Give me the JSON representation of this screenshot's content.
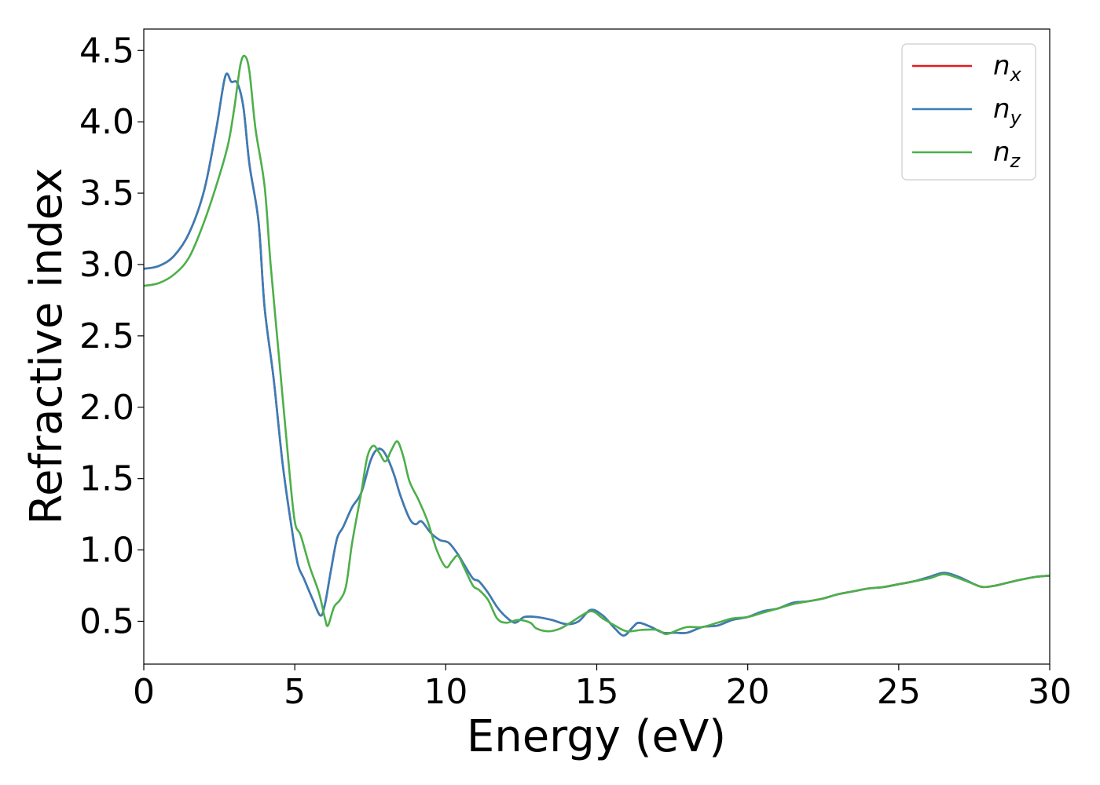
{
  "chart_data": {
    "type": "line",
    "title": "",
    "xlabel": "Energy (eV)",
    "ylabel": "Refractive index",
    "xlim": [
      0,
      30
    ],
    "ylim": [
      0.2,
      4.65
    ],
    "xticks": [
      0,
      5,
      10,
      15,
      20,
      25,
      30
    ],
    "xtick_labels": [
      "0",
      "5",
      "10",
      "15",
      "20",
      "25",
      "30"
    ],
    "yticks": [
      0.5,
      1.0,
      1.5,
      2.0,
      2.5,
      3.0,
      3.5,
      4.0,
      4.5
    ],
    "ytick_labels": [
      "0.5",
      "1.0",
      "1.5",
      "2.0",
      "2.5",
      "3.0",
      "3.5",
      "4.0",
      "4.5"
    ],
    "grid": false,
    "legend_position": "top-right",
    "legend": [
      {
        "base": "n",
        "sub": "x",
        "color": "#e41a1c"
      },
      {
        "base": "n",
        "sub": "y",
        "color": "#377eb8"
      },
      {
        "base": "n",
        "sub": "z",
        "color": "#4daf4a"
      }
    ],
    "series": [
      {
        "color": "#e41a1c",
        "points": [
          [
            0,
            2.97
          ],
          [
            0.5,
            2.99
          ],
          [
            1.0,
            3.06
          ],
          [
            1.5,
            3.22
          ],
          [
            2.0,
            3.52
          ],
          [
            2.4,
            3.95
          ],
          [
            2.7,
            4.32
          ],
          [
            2.9,
            4.28
          ],
          [
            3.1,
            4.27
          ],
          [
            3.3,
            4.1
          ],
          [
            3.5,
            3.7
          ],
          [
            3.8,
            3.3
          ],
          [
            4.0,
            2.7
          ],
          [
            4.3,
            2.2
          ],
          [
            4.6,
            1.6
          ],
          [
            4.9,
            1.15
          ],
          [
            5.1,
            0.9
          ],
          [
            5.3,
            0.8
          ],
          [
            5.6,
            0.65
          ],
          [
            5.85,
            0.54
          ],
          [
            6.0,
            0.62
          ],
          [
            6.2,
            0.86
          ],
          [
            6.4,
            1.08
          ],
          [
            6.6,
            1.16
          ],
          [
            6.9,
            1.3
          ],
          [
            7.2,
            1.4
          ],
          [
            7.5,
            1.62
          ],
          [
            7.7,
            1.7
          ],
          [
            7.9,
            1.7
          ],
          [
            8.1,
            1.63
          ],
          [
            8.3,
            1.52
          ],
          [
            8.5,
            1.38
          ],
          [
            8.8,
            1.22
          ],
          [
            9.0,
            1.18
          ],
          [
            9.2,
            1.2
          ],
          [
            9.5,
            1.12
          ],
          [
            9.8,
            1.07
          ],
          [
            10.1,
            1.05
          ],
          [
            10.4,
            0.97
          ],
          [
            10.6,
            0.9
          ],
          [
            10.9,
            0.8
          ],
          [
            11.1,
            0.78
          ],
          [
            11.4,
            0.7
          ],
          [
            11.7,
            0.6
          ],
          [
            12.0,
            0.53
          ],
          [
            12.3,
            0.49
          ],
          [
            12.6,
            0.53
          ],
          [
            13.0,
            0.53
          ],
          [
            13.5,
            0.51
          ],
          [
            14.0,
            0.48
          ],
          [
            14.4,
            0.5
          ],
          [
            14.8,
            0.58
          ],
          [
            15.2,
            0.54
          ],
          [
            15.6,
            0.45
          ],
          [
            15.9,
            0.4
          ],
          [
            16.2,
            0.46
          ],
          [
            16.4,
            0.49
          ],
          [
            16.8,
            0.46
          ],
          [
            17.2,
            0.42
          ],
          [
            17.6,
            0.42
          ],
          [
            18.0,
            0.42
          ],
          [
            18.5,
            0.46
          ],
          [
            19.0,
            0.47
          ],
          [
            19.5,
            0.51
          ],
          [
            20.0,
            0.53
          ],
          [
            20.5,
            0.57
          ],
          [
            21.0,
            0.59
          ],
          [
            21.5,
            0.63
          ],
          [
            22.0,
            0.64
          ],
          [
            22.5,
            0.66
          ],
          [
            23.0,
            0.69
          ],
          [
            23.5,
            0.71
          ],
          [
            24.0,
            0.73
          ],
          [
            24.5,
            0.74
          ],
          [
            25.0,
            0.76
          ],
          [
            25.5,
            0.78
          ],
          [
            26.0,
            0.81
          ],
          [
            26.5,
            0.84
          ],
          [
            27.0,
            0.81
          ],
          [
            27.5,
            0.76
          ],
          [
            27.8,
            0.74
          ],
          [
            28.2,
            0.75
          ],
          [
            28.6,
            0.77
          ],
          [
            29.0,
            0.79
          ],
          [
            29.5,
            0.81
          ],
          [
            30.0,
            0.82
          ]
        ]
      },
      {
        "color": "#377eb8",
        "points": [
          [
            0,
            2.97
          ],
          [
            0.5,
            2.99
          ],
          [
            1.0,
            3.06
          ],
          [
            1.5,
            3.22
          ],
          [
            2.0,
            3.52
          ],
          [
            2.4,
            3.95
          ],
          [
            2.7,
            4.32
          ],
          [
            2.9,
            4.28
          ],
          [
            3.1,
            4.27
          ],
          [
            3.3,
            4.1
          ],
          [
            3.5,
            3.7
          ],
          [
            3.8,
            3.3
          ],
          [
            4.0,
            2.7
          ],
          [
            4.3,
            2.2
          ],
          [
            4.6,
            1.6
          ],
          [
            4.9,
            1.15
          ],
          [
            5.1,
            0.9
          ],
          [
            5.3,
            0.8
          ],
          [
            5.6,
            0.65
          ],
          [
            5.85,
            0.54
          ],
          [
            6.0,
            0.62
          ],
          [
            6.2,
            0.86
          ],
          [
            6.4,
            1.08
          ],
          [
            6.6,
            1.16
          ],
          [
            6.9,
            1.3
          ],
          [
            7.2,
            1.4
          ],
          [
            7.5,
            1.62
          ],
          [
            7.7,
            1.7
          ],
          [
            7.9,
            1.7
          ],
          [
            8.1,
            1.63
          ],
          [
            8.3,
            1.52
          ],
          [
            8.5,
            1.38
          ],
          [
            8.8,
            1.22
          ],
          [
            9.0,
            1.18
          ],
          [
            9.2,
            1.2
          ],
          [
            9.5,
            1.12
          ],
          [
            9.8,
            1.07
          ],
          [
            10.1,
            1.05
          ],
          [
            10.4,
            0.97
          ],
          [
            10.6,
            0.9
          ],
          [
            10.9,
            0.8
          ],
          [
            11.1,
            0.78
          ],
          [
            11.4,
            0.7
          ],
          [
            11.7,
            0.6
          ],
          [
            12.0,
            0.53
          ],
          [
            12.3,
            0.49
          ],
          [
            12.6,
            0.53
          ],
          [
            13.0,
            0.53
          ],
          [
            13.5,
            0.51
          ],
          [
            14.0,
            0.48
          ],
          [
            14.4,
            0.5
          ],
          [
            14.8,
            0.58
          ],
          [
            15.2,
            0.54
          ],
          [
            15.6,
            0.45
          ],
          [
            15.9,
            0.4
          ],
          [
            16.2,
            0.46
          ],
          [
            16.4,
            0.49
          ],
          [
            16.8,
            0.46
          ],
          [
            17.2,
            0.42
          ],
          [
            17.6,
            0.42
          ],
          [
            18.0,
            0.42
          ],
          [
            18.5,
            0.46
          ],
          [
            19.0,
            0.47
          ],
          [
            19.5,
            0.51
          ],
          [
            20.0,
            0.53
          ],
          [
            20.5,
            0.57
          ],
          [
            21.0,
            0.59
          ],
          [
            21.5,
            0.63
          ],
          [
            22.0,
            0.64
          ],
          [
            22.5,
            0.66
          ],
          [
            23.0,
            0.69
          ],
          [
            23.5,
            0.71
          ],
          [
            24.0,
            0.73
          ],
          [
            24.5,
            0.74
          ],
          [
            25.0,
            0.76
          ],
          [
            25.5,
            0.78
          ],
          [
            26.0,
            0.81
          ],
          [
            26.5,
            0.84
          ],
          [
            27.0,
            0.81
          ],
          [
            27.5,
            0.76
          ],
          [
            27.8,
            0.74
          ],
          [
            28.2,
            0.75
          ],
          [
            28.6,
            0.77
          ],
          [
            29.0,
            0.79
          ],
          [
            29.5,
            0.81
          ],
          [
            30.0,
            0.82
          ]
        ]
      },
      {
        "color": "#4daf4a",
        "points": [
          [
            0,
            2.85
          ],
          [
            0.5,
            2.87
          ],
          [
            1.0,
            2.93
          ],
          [
            1.5,
            3.05
          ],
          [
            2.0,
            3.3
          ],
          [
            2.5,
            3.62
          ],
          [
            2.8,
            3.85
          ],
          [
            3.0,
            4.1
          ],
          [
            3.2,
            4.4
          ],
          [
            3.35,
            4.46
          ],
          [
            3.5,
            4.35
          ],
          [
            3.7,
            3.95
          ],
          [
            4.0,
            3.55
          ],
          [
            4.2,
            3.0
          ],
          [
            4.5,
            2.3
          ],
          [
            4.8,
            1.6
          ],
          [
            5.0,
            1.2
          ],
          [
            5.2,
            1.1
          ],
          [
            5.5,
            0.88
          ],
          [
            5.8,
            0.7
          ],
          [
            6.0,
            0.52
          ],
          [
            6.1,
            0.47
          ],
          [
            6.3,
            0.6
          ],
          [
            6.5,
            0.65
          ],
          [
            6.7,
            0.75
          ],
          [
            6.9,
            1.05
          ],
          [
            7.2,
            1.4
          ],
          [
            7.4,
            1.65
          ],
          [
            7.6,
            1.73
          ],
          [
            7.8,
            1.68
          ],
          [
            8.0,
            1.62
          ],
          [
            8.2,
            1.7
          ],
          [
            8.4,
            1.76
          ],
          [
            8.6,
            1.65
          ],
          [
            8.8,
            1.48
          ],
          [
            9.1,
            1.35
          ],
          [
            9.4,
            1.2
          ],
          [
            9.7,
            1.0
          ],
          [
            10.0,
            0.88
          ],
          [
            10.2,
            0.92
          ],
          [
            10.4,
            0.96
          ],
          [
            10.6,
            0.88
          ],
          [
            10.9,
            0.75
          ],
          [
            11.1,
            0.72
          ],
          [
            11.4,
            0.65
          ],
          [
            11.7,
            0.52
          ],
          [
            12.0,
            0.49
          ],
          [
            12.4,
            0.51
          ],
          [
            12.8,
            0.49
          ],
          [
            13.0,
            0.45
          ],
          [
            13.4,
            0.43
          ],
          [
            13.8,
            0.45
          ],
          [
            14.2,
            0.5
          ],
          [
            14.8,
            0.57
          ],
          [
            15.2,
            0.52
          ],
          [
            15.6,
            0.47
          ],
          [
            16.0,
            0.43
          ],
          [
            16.5,
            0.44
          ],
          [
            17.0,
            0.44
          ],
          [
            17.3,
            0.41
          ],
          [
            17.7,
            0.44
          ],
          [
            18.0,
            0.46
          ],
          [
            18.5,
            0.46
          ],
          [
            19.0,
            0.49
          ],
          [
            19.5,
            0.52
          ],
          [
            20.0,
            0.53
          ],
          [
            20.5,
            0.56
          ],
          [
            21.0,
            0.59
          ],
          [
            21.5,
            0.62
          ],
          [
            22.0,
            0.64
          ],
          [
            22.5,
            0.66
          ],
          [
            23.0,
            0.69
          ],
          [
            23.5,
            0.71
          ],
          [
            24.0,
            0.73
          ],
          [
            24.5,
            0.74
          ],
          [
            25.0,
            0.76
          ],
          [
            25.5,
            0.78
          ],
          [
            26.0,
            0.8
          ],
          [
            26.5,
            0.83
          ],
          [
            27.0,
            0.8
          ],
          [
            27.5,
            0.76
          ],
          [
            27.8,
            0.74
          ],
          [
            28.2,
            0.75
          ],
          [
            28.6,
            0.77
          ],
          [
            29.0,
            0.79
          ],
          [
            29.5,
            0.81
          ],
          [
            30.0,
            0.82
          ]
        ]
      }
    ]
  }
}
